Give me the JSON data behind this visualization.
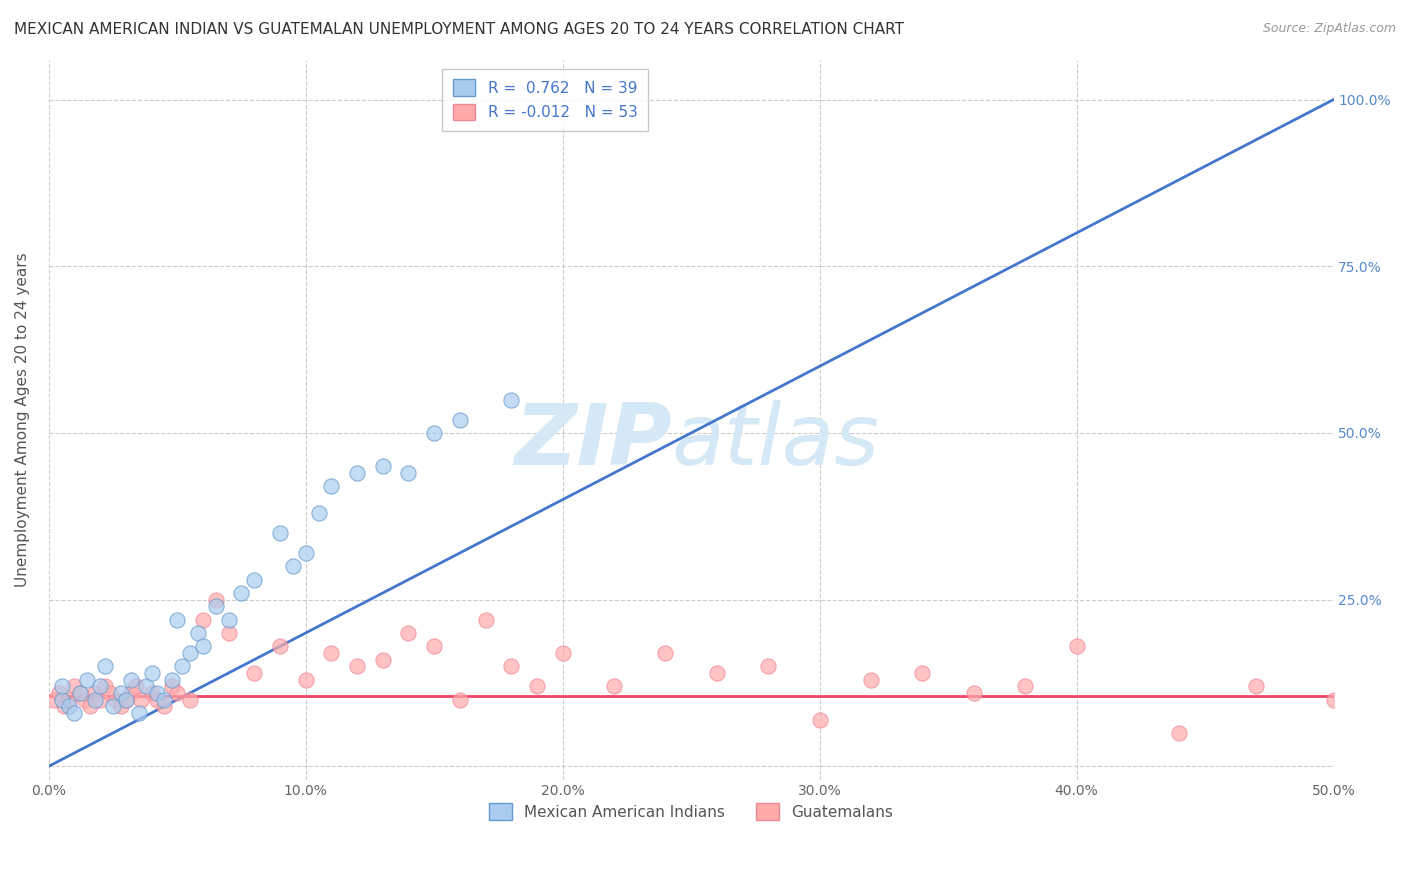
{
  "title": "MEXICAN AMERICAN INDIAN VS GUATEMALAN UNEMPLOYMENT AMONG AGES 20 TO 24 YEARS CORRELATION CHART",
  "source": "Source: ZipAtlas.com",
  "ylabel": "Unemployment Among Ages 20 to 24 years",
  "xlim": [
    0.0,
    0.5
  ],
  "ylim": [
    -0.02,
    1.06
  ],
  "xticks": [
    0.0,
    0.1,
    0.2,
    0.3,
    0.4,
    0.5
  ],
  "yticks": [
    0.0,
    0.25,
    0.5,
    0.75,
    1.0
  ],
  "xtick_labels": [
    "0.0%",
    "10.0%",
    "20.0%",
    "30.0%",
    "40.0%",
    "50.0%"
  ],
  "right_ytick_labels": [
    "",
    "25.0%",
    "50.0%",
    "75.0%",
    "100.0%"
  ],
  "legend_r1": "R =  0.762",
  "legend_n1": "N = 39",
  "legend_r2": "R = -0.012",
  "legend_n2": "N = 53",
  "color_blue": "#AACCEE",
  "color_pink": "#FFAAAA",
  "color_blue_edge": "#6699CC",
  "color_pink_edge": "#EE8899",
  "color_blue_line": "#4477CC",
  "color_pink_line": "#EE4466",
  "watermark_zip": "ZIP",
  "watermark_atlas": "atlas",
  "watermark_color": "#D5E8F5",
  "grid_color": "#CCCCCC",
  "background_color": "#FFFFFF",
  "title_fontsize": 11,
  "axis_label_fontsize": 11,
  "tick_fontsize": 10,
  "legend_fontsize": 11,
  "blue_scatter_x": [
    0.005,
    0.005,
    0.008,
    0.01,
    0.012,
    0.015,
    0.018,
    0.02,
    0.022,
    0.025,
    0.028,
    0.03,
    0.032,
    0.035,
    0.038,
    0.04,
    0.042,
    0.045,
    0.048,
    0.05,
    0.052,
    0.055,
    0.058,
    0.06,
    0.065,
    0.07,
    0.075,
    0.08,
    0.09,
    0.095,
    0.1,
    0.105,
    0.11,
    0.12,
    0.13,
    0.14,
    0.15,
    0.16,
    0.18
  ],
  "blue_scatter_y": [
    0.1,
    0.12,
    0.09,
    0.08,
    0.11,
    0.13,
    0.1,
    0.12,
    0.15,
    0.09,
    0.11,
    0.1,
    0.13,
    0.08,
    0.12,
    0.14,
    0.11,
    0.1,
    0.13,
    0.22,
    0.15,
    0.17,
    0.2,
    0.18,
    0.24,
    0.22,
    0.26,
    0.28,
    0.35,
    0.3,
    0.32,
    0.38,
    0.42,
    0.44,
    0.45,
    0.44,
    0.5,
    0.52,
    0.55
  ],
  "pink_scatter_x": [
    0.002,
    0.004,
    0.006,
    0.008,
    0.01,
    0.012,
    0.014,
    0.016,
    0.018,
    0.02,
    0.022,
    0.024,
    0.026,
    0.028,
    0.03,
    0.032,
    0.034,
    0.036,
    0.04,
    0.042,
    0.045,
    0.048,
    0.05,
    0.055,
    0.06,
    0.065,
    0.07,
    0.08,
    0.09,
    0.1,
    0.11,
    0.12,
    0.13,
    0.14,
    0.15,
    0.16,
    0.17,
    0.18,
    0.19,
    0.2,
    0.22,
    0.24,
    0.26,
    0.28,
    0.3,
    0.32,
    0.34,
    0.36,
    0.38,
    0.4,
    0.44,
    0.47,
    0.5
  ],
  "pink_scatter_y": [
    0.1,
    0.11,
    0.09,
    0.1,
    0.12,
    0.11,
    0.1,
    0.09,
    0.11,
    0.1,
    0.12,
    0.11,
    0.1,
    0.09,
    0.1,
    0.11,
    0.12,
    0.1,
    0.11,
    0.1,
    0.09,
    0.12,
    0.11,
    0.1,
    0.22,
    0.25,
    0.2,
    0.14,
    0.18,
    0.13,
    0.17,
    0.15,
    0.16,
    0.2,
    0.18,
    0.1,
    0.22,
    0.15,
    0.12,
    0.17,
    0.12,
    0.17,
    0.14,
    0.15,
    0.07,
    0.13,
    0.14,
    0.11,
    0.12,
    0.18,
    0.05,
    0.12,
    0.1
  ],
  "blue_line_x0": 0.0,
  "blue_line_x1": 0.5,
  "blue_line_y0": 0.0,
  "blue_line_y1": 1.0,
  "pink_line_x0": 0.0,
  "pink_line_x1": 0.5,
  "pink_line_y0": 0.105,
  "pink_line_y1": 0.105
}
